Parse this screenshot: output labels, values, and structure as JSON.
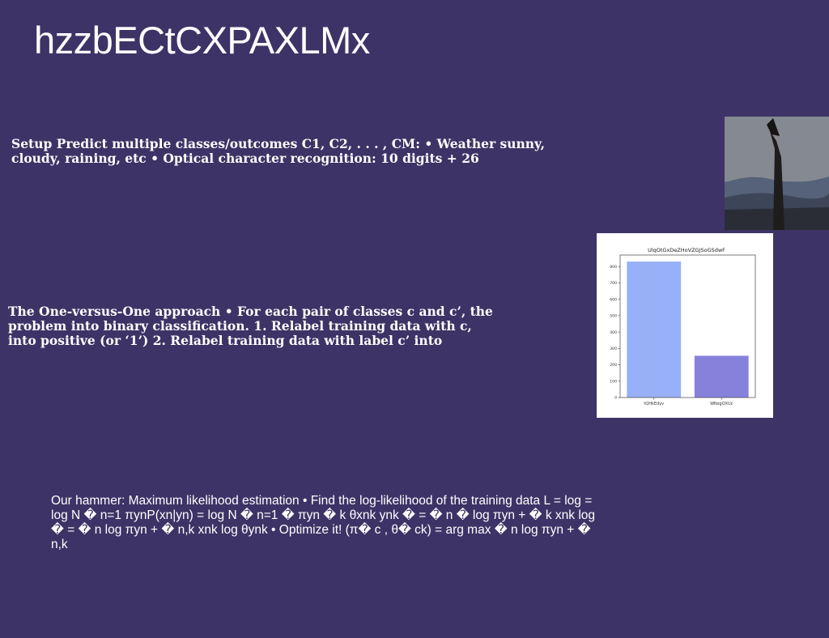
{
  "slide": {
    "title": "hzzbECtCXPAXLMx",
    "block1": "Setup Predict multiple classes/outcomes C1, C2, . . . , CM: • Weather sunny, cloudy, raining, etc • Optical character recognition: 10 digits + 26",
    "block2": "The One-versus-One approach • For each pair of classes c and c’, the problem into binary classification. 1. Relabel training data with c, into positive (or ‘1’) 2. Relabel training data with label c’ into",
    "block3": "Our hammer: Maximum likelihood estimation • Find the log-likelihood of the training data L = log = log N � n=1 πynP(xn|yn) = log N � n=1 � πyn � k θxnk ynk � = � n � log πyn + � k xnk log � = � n log πyn + � n,k xnk log θynk • Optimize it! (π� c , θ� ck) = arg max � n log πyn + � n,k"
  },
  "colors": {
    "background": "#3e3366",
    "bar1": "#97b0f8",
    "bar2": "#8682dc"
  },
  "chart_data": {
    "type": "bar",
    "title": "UlqOtGxDeZHoVZGJSoGSdwF",
    "categories": [
      "tQHkEdyv",
      "WNzgQXUc"
    ],
    "values": [
      830,
      255
    ],
    "ylim": [
      0,
      870
    ],
    "yticks": [
      0,
      100,
      200,
      300,
      400,
      500,
      600,
      700,
      800
    ],
    "xlabel": "",
    "ylabel": "",
    "grid": false
  }
}
